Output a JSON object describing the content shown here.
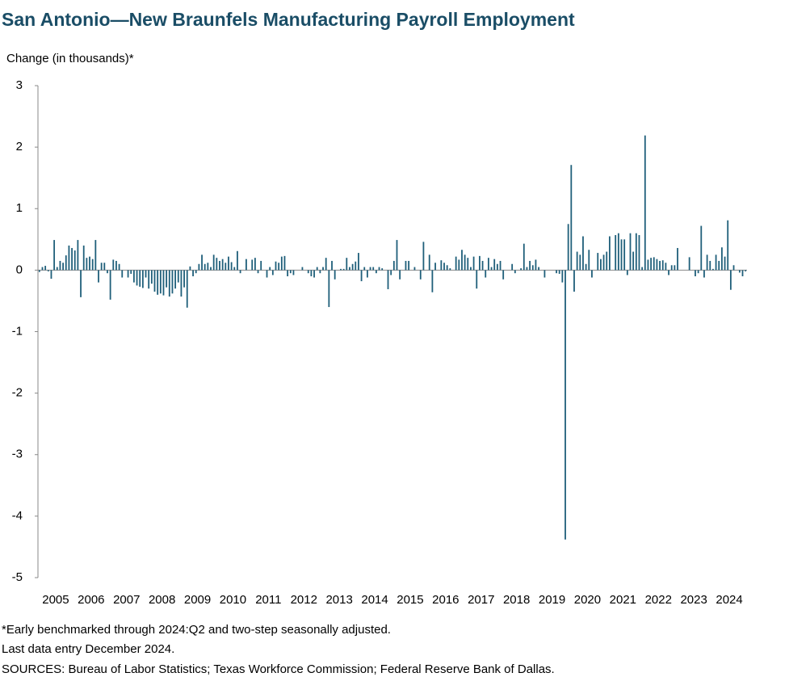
{
  "chart_data": {
    "type": "bar",
    "title": "San Antonio—New Braunfels Manufacturing Payroll Employment",
    "ylabel": "Change (in thousands)*",
    "color": "#1f5f7a",
    "ylim": [
      -5,
      3
    ],
    "yticks": [
      -5,
      -4,
      -3,
      -2,
      -1,
      0,
      1,
      2,
      3
    ],
    "categories": [
      "2005",
      null,
      null,
      null,
      null,
      null,
      null,
      null,
      null,
      null,
      null,
      null,
      "2006",
      null,
      null,
      null,
      null,
      null,
      null,
      null,
      null,
      null,
      null,
      null,
      "2007",
      null,
      null,
      null,
      null,
      null,
      null,
      null,
      null,
      null,
      null,
      null,
      "2008",
      null,
      null,
      null,
      null,
      null,
      null,
      null,
      null,
      null,
      null,
      null,
      "2009",
      null,
      null,
      null,
      null,
      null,
      null,
      null,
      null,
      null,
      null,
      null,
      "2010",
      null,
      null,
      null,
      null,
      null,
      null,
      null,
      null,
      null,
      null,
      null,
      "2011",
      null,
      null,
      null,
      null,
      null,
      null,
      null,
      null,
      null,
      null,
      null,
      "2012",
      null,
      null,
      null,
      null,
      null,
      null,
      null,
      null,
      null,
      null,
      null,
      "2013",
      null,
      null,
      null,
      null,
      null,
      null,
      null,
      null,
      null,
      null,
      null,
      "2014",
      null,
      null,
      null,
      null,
      null,
      null,
      null,
      null,
      null,
      null,
      null,
      "2015",
      null,
      null,
      null,
      null,
      null,
      null,
      null,
      null,
      null,
      null,
      null,
      "2016",
      null,
      null,
      null,
      null,
      null,
      null,
      null,
      null,
      null,
      null,
      null,
      "2017",
      null,
      null,
      null,
      null,
      null,
      null,
      null,
      null,
      null,
      null,
      null,
      "2018",
      null,
      null,
      null,
      null,
      null,
      null,
      null,
      null,
      null,
      null,
      null,
      "2019",
      null,
      null,
      null,
      null,
      null,
      null,
      null,
      null,
      null,
      null,
      null,
      "2020",
      null,
      null,
      null,
      null,
      null,
      null,
      null,
      null,
      null,
      null,
      null,
      "2021",
      null,
      null,
      null,
      null,
      null,
      null,
      null,
      null,
      null,
      null,
      null,
      "2022",
      null,
      null,
      null,
      null,
      null,
      null,
      null,
      null,
      null,
      null,
      null,
      "2023",
      null,
      null,
      null,
      null,
      null,
      null,
      null,
      null,
      null,
      null,
      null,
      "2024",
      null,
      null,
      null,
      null,
      null,
      null,
      null,
      null,
      null,
      null,
      null
    ],
    "values": [
      -0.03,
      0.05,
      0.07,
      -0.02,
      -0.14,
      0.49,
      0.05,
      0.15,
      0.12,
      0.24,
      0.4,
      0.36,
      0.32,
      0.49,
      -0.44,
      0.4,
      0.2,
      0.22,
      0.18,
      0.49,
      -0.2,
      0.12,
      0.12,
      -0.05,
      -0.48,
      0.17,
      0.15,
      0.1,
      -0.12,
      0,
      -0.12,
      -0.06,
      -0.2,
      -0.25,
      -0.27,
      -0.29,
      -0.12,
      -0.3,
      -0.22,
      -0.35,
      -0.4,
      -0.38,
      -0.41,
      -0.28,
      -0.43,
      -0.38,
      -0.3,
      -0.2,
      -0.43,
      -0.28,
      -0.61,
      0.06,
      -0.1,
      -0.05,
      0.1,
      0.25,
      0.1,
      0.12,
      0.05,
      0.25,
      0.2,
      0.15,
      0.18,
      0.12,
      0.22,
      0.13,
      0.05,
      0.31,
      -0.05,
      0,
      0.18,
      0,
      0.17,
      0.2,
      -0.05,
      0.15,
      0,
      -0.12,
      0.05,
      -0.08,
      0.14,
      0.12,
      0.22,
      0.23,
      -0.1,
      -0.05,
      -0.08,
      0,
      0,
      0.05,
      0,
      -0.05,
      -0.1,
      -0.12,
      0.05,
      -0.05,
      0.05,
      0.2,
      -0.6,
      0.15,
      -0.15,
      0,
      0.02,
      0.02,
      0.2,
      0.05,
      0.1,
      0.14,
      0.28,
      -0.18,
      0.05,
      -0.12,
      0.05,
      0.05,
      -0.05,
      0.05,
      0.03,
      0,
      -0.31,
      -0.08,
      0.15,
      0.49,
      -0.15,
      0,
      0.15,
      0.15,
      0,
      0.05,
      0,
      -0.15,
      0.46,
      0,
      0.25,
      -0.36,
      0.12,
      0,
      0.16,
      0.12,
      0.08,
      0.03,
      0,
      0.22,
      0.17,
      0.33,
      0.25,
      0.2,
      0.05,
      0.22,
      -0.3,
      0.23,
      0.15,
      -0.12,
      0.2,
      0.05,
      0.18,
      0.1,
      0.15,
      -0.15,
      0,
      0,
      0.1,
      -0.05,
      0,
      0.03,
      0.43,
      0.05,
      0.15,
      0.08,
      0.17,
      0.05,
      0,
      -0.12,
      0,
      0,
      0,
      -0.05,
      -0.06,
      -0.2,
      -4.38,
      0.75,
      1.71,
      -0.35,
      0.3,
      0.25,
      0.55,
      0.1,
      0.33,
      -0.12,
      0,
      0.28,
      0.18,
      0.25,
      0.3,
      0.55,
      0,
      0.57,
      0.6,
      0.5,
      0.5,
      -0.08,
      0.6,
      0.3,
      0.6,
      0.57,
      0.05,
      2.19,
      0.17,
      0.2,
      0.21,
      0.18,
      0.15,
      0.16,
      0.12,
      -0.08,
      0.08,
      0.08,
      0.36,
      0,
      0,
      0,
      0.21,
      0,
      -0.1,
      -0.05,
      0.72,
      -0.12,
      0.25,
      0.15,
      0.02,
      0.25,
      0.15,
      0.37,
      0.22,
      0.81,
      -0.32,
      0.08,
      0,
      -0.04,
      -0.1,
      -0.02
    ],
    "notes": [
      "*Early benchmarked through 2024:Q2 and two-step seasonally adjusted.",
      "Last data entry December 2024.",
      "SOURCES: Bureau of Labor Statistics; Texas Workforce Commission; Federal Reserve Bank of Dallas."
    ]
  }
}
